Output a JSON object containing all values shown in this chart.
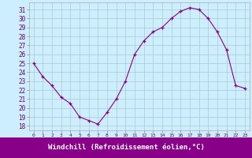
{
  "x": [
    0,
    1,
    2,
    3,
    4,
    5,
    6,
    7,
    8,
    9,
    10,
    11,
    12,
    13,
    14,
    15,
    16,
    17,
    18,
    19,
    20,
    21,
    22,
    23
  ],
  "y": [
    25.0,
    23.5,
    22.5,
    21.2,
    20.5,
    19.0,
    18.6,
    18.2,
    19.5,
    21.0,
    23.0,
    26.0,
    27.5,
    28.5,
    29.0,
    30.0,
    30.8,
    31.2,
    31.0,
    30.0,
    28.5,
    26.5,
    22.5,
    22.2
  ],
  "line_color": "#880088",
  "marker": "+",
  "bg_color": "#cceeff",
  "grid_color": "#aacccc",
  "xlabel": "Windchill (Refroidissement éolien,°C)",
  "xlabel_color": "#ffffff",
  "xlabel_bg": "#880088",
  "ytick_labels": [
    "18",
    "19",
    "20",
    "21",
    "22",
    "23",
    "24",
    "25",
    "26",
    "27",
    "28",
    "29",
    "30",
    "31"
  ],
  "ytick_vals": [
    18,
    19,
    20,
    21,
    22,
    23,
    24,
    25,
    26,
    27,
    28,
    29,
    30,
    31
  ],
  "xtick_labels": [
    "0",
    "1",
    "2",
    "3",
    "4",
    "5",
    "6",
    "7",
    "8",
    "9",
    "10",
    "11",
    "12",
    "13",
    "14",
    "15",
    "16",
    "17",
    "18",
    "19",
    "20",
    "21",
    "22",
    "23"
  ],
  "ylim": [
    17.5,
    31.8
  ],
  "xlim": [
    -0.5,
    23.5
  ]
}
